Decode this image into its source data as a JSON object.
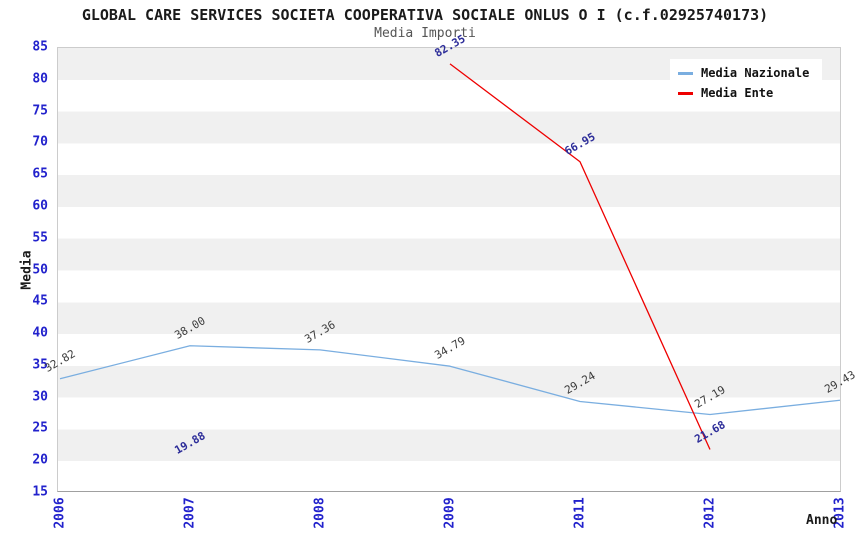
{
  "title": "GLOBAL CARE SERVICES SOCIETA COOPERATIVA SOCIALE ONLUS O I (c.f.02925740173)",
  "subtitle": "Media Importi",
  "chart_data": {
    "type": "line",
    "x_categories": [
      "2006",
      "2007",
      "2008",
      "2009",
      "2011",
      "2012",
      "2013"
    ],
    "xlabel": "Anno",
    "ylabel": "Media",
    "ylim": [
      15,
      85
    ],
    "ytick_step": 5,
    "grid": "horizontal-alternating-bands",
    "legend_position": "top-right-inside",
    "series": [
      {
        "name": "Media Nazionale",
        "color": "#7aaee0",
        "label_color": "#3c3c3c",
        "label_bold": false,
        "values": [
          32.82,
          38.0,
          37.36,
          34.79,
          29.24,
          27.19,
          29.43
        ]
      },
      {
        "name": "Media Ente",
        "color": "#ee0000",
        "label_color": "#2d2d99",
        "label_bold": true,
        "values": [
          null,
          19.88,
          null,
          82.35,
          66.95,
          21.68,
          null
        ]
      }
    ]
  },
  "colors": {
    "band_gray": "#f0f0f0",
    "plot_border": "#cccccc",
    "bottom_axis": "#a0a0a0",
    "tick_label_blue": "#2222cc",
    "title_color": "#1a1a1a",
    "subtitle_color": "#555555",
    "legend_background": "#ffffff"
  }
}
